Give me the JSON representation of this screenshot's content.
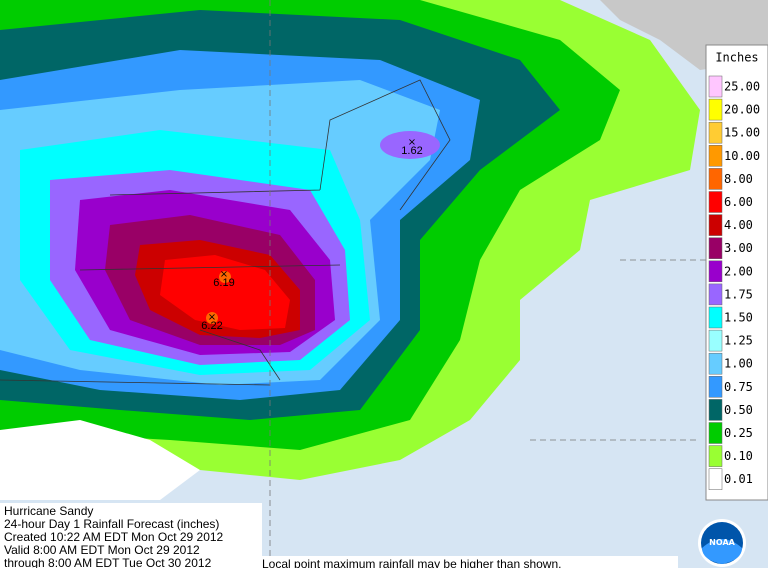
{
  "legend": {
    "title": "Inches",
    "items": [
      {
        "label": "25.00",
        "color": "#ffc6ff"
      },
      {
        "label": "20.00",
        "color": "#ffff00"
      },
      {
        "label": "15.00",
        "color": "#ffcc33"
      },
      {
        "label": "10.00",
        "color": "#ff9900"
      },
      {
        "label": "8.00",
        "color": "#ff6600"
      },
      {
        "label": "6.00",
        "color": "#ff0000"
      },
      {
        "label": "4.00",
        "color": "#cc0000"
      },
      {
        "label": "3.00",
        "color": "#990066"
      },
      {
        "label": "2.00",
        "color": "#9900cc"
      },
      {
        "label": "1.75",
        "color": "#9966ff"
      },
      {
        "label": "1.50",
        "color": "#00ffff"
      },
      {
        "label": "1.25",
        "color": "#99ffff"
      },
      {
        "label": "1.00",
        "color": "#66ccff"
      },
      {
        "label": "0.75",
        "color": "#3399ff"
      },
      {
        "label": "0.50",
        "color": "#006666"
      },
      {
        "label": "0.25",
        "color": "#00cc00"
      },
      {
        "label": "0.10",
        "color": "#99ff33"
      },
      {
        "label": "0.01",
        "color": "#ffffff"
      }
    ]
  },
  "annotations": [
    "1.62",
    "6.19",
    "6.22"
  ],
  "caption": [
    "Hurricane Sandy",
    "24-hour Day 1 Rainfall Forecast (inches)",
    "Created 10:22 AM EDT Mon Oct 29 2012",
    "Valid 8:00 AM EDT Mon Oct 29 2012",
    "through 8:00 AM EDT Tue Oct 30 2012"
  ],
  "note": "Local point maximum rainfall may be higher than shown.",
  "logo": "NOAA"
}
